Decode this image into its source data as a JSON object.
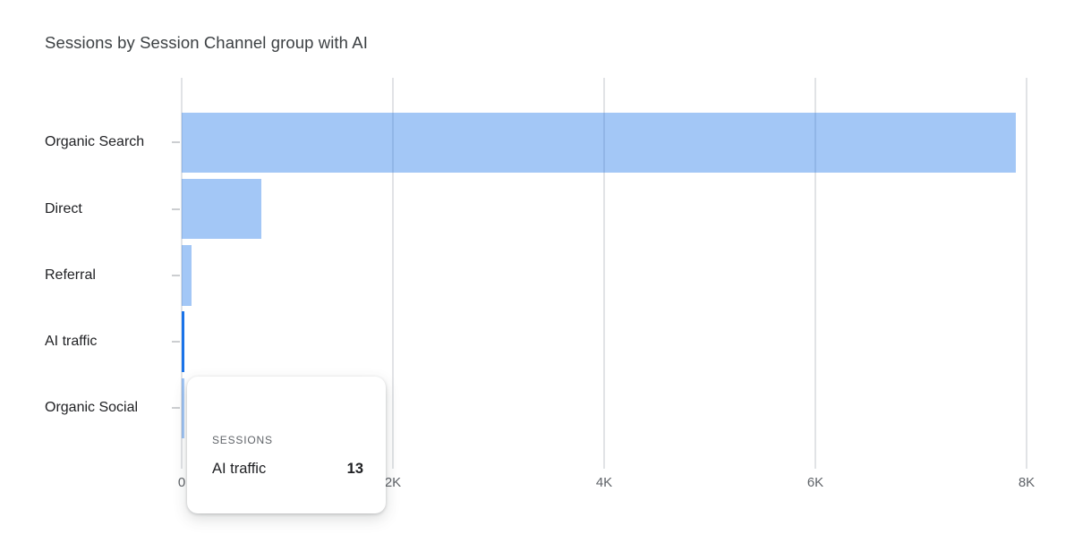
{
  "title": "Sessions by Session Channel group with AI",
  "colors": {
    "accent_blue": "#1a73e8",
    "bar_light": "rgba(26,115,232,0.40)",
    "gridline": "#e1e3e6",
    "title_text": "#3c4043",
    "category_text": "#202124",
    "axis_text": "#5f6368"
  },
  "chart_data": {
    "type": "bar",
    "orientation": "horizontal",
    "title": "Sessions by Session Channel group with AI",
    "categories": [
      "Organic Search",
      "Direct",
      "Referral",
      "AI traffic",
      "Organic Social"
    ],
    "values": [
      7900,
      750,
      95,
      13,
      15
    ],
    "highlighted_category": "AI traffic",
    "highlighted_value": 13,
    "x_tick_labels": [
      "0",
      "2K",
      "4K",
      "6K",
      "8K"
    ],
    "x_tick_values": [
      0,
      2000,
      4000,
      6000,
      8000
    ],
    "xlim": [
      0,
      8400
    ],
    "ylabel": "",
    "xlabel": "",
    "grid": "vertical-only",
    "legend": false
  },
  "tooltip": {
    "metric_label": "SESSIONS",
    "row_label": "AI traffic",
    "row_value": "13"
  }
}
